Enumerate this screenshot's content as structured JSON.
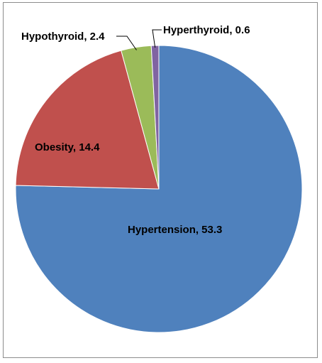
{
  "chart_data": {
    "type": "pie",
    "title": "",
    "slices": [
      {
        "name": "Hypertension",
        "value": 53.3,
        "label": "Hypertension, 53.3",
        "color": "#4f81bd"
      },
      {
        "name": "Obesity",
        "value": 14.4,
        "label": "Obesity, 14.4",
        "color": "#c0504d"
      },
      {
        "name": "Hypothyroid",
        "value": 2.4,
        "label": "Hypothyroid, 2.4",
        "color": "#9bbb59"
      },
      {
        "name": "Hyperthyroid",
        "value": 0.6,
        "label": "Hyperthyroid, 0.6",
        "color": "#8064a2"
      }
    ],
    "legend": "none",
    "start_angle_deg": 0,
    "direction": "clockwise"
  }
}
